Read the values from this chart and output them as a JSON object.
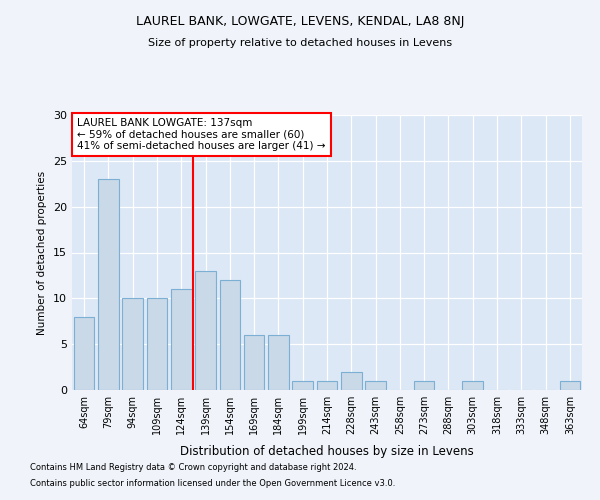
{
  "title1": "LAUREL BANK, LOWGATE, LEVENS, KENDAL, LA8 8NJ",
  "title2": "Size of property relative to detached houses in Levens",
  "xlabel": "Distribution of detached houses by size in Levens",
  "ylabel": "Number of detached properties",
  "categories": [
    "64sqm",
    "79sqm",
    "94sqm",
    "109sqm",
    "124sqm",
    "139sqm",
    "154sqm",
    "169sqm",
    "184sqm",
    "199sqm",
    "214sqm",
    "228sqm",
    "243sqm",
    "258sqm",
    "273sqm",
    "288sqm",
    "303sqm",
    "318sqm",
    "333sqm",
    "348sqm",
    "363sqm"
  ],
  "values": [
    8,
    23,
    10,
    10,
    11,
    13,
    12,
    6,
    6,
    1,
    1,
    2,
    1,
    0,
    1,
    0,
    1,
    0,
    0,
    0,
    1
  ],
  "bar_color": "#c9d9e8",
  "bar_edge_color": "#7bafd4",
  "vline_x": 4.5,
  "vline_color": "red",
  "annotation_title": "LAUREL BANK LOWGATE: 137sqm",
  "annotation_line1": "← 59% of detached houses are smaller (60)",
  "annotation_line2": "41% of semi-detached houses are larger (41) →",
  "annotation_box_color": "white",
  "annotation_box_edge": "red",
  "ylim": [
    0,
    30
  ],
  "yticks": [
    0,
    5,
    10,
    15,
    20,
    25,
    30
  ],
  "footer1": "Contains HM Land Registry data © Crown copyright and database right 2024.",
  "footer2": "Contains public sector information licensed under the Open Government Licence v3.0.",
  "fig_facecolor": "#f0f4fa",
  "plot_facecolor": "#dce8f5"
}
